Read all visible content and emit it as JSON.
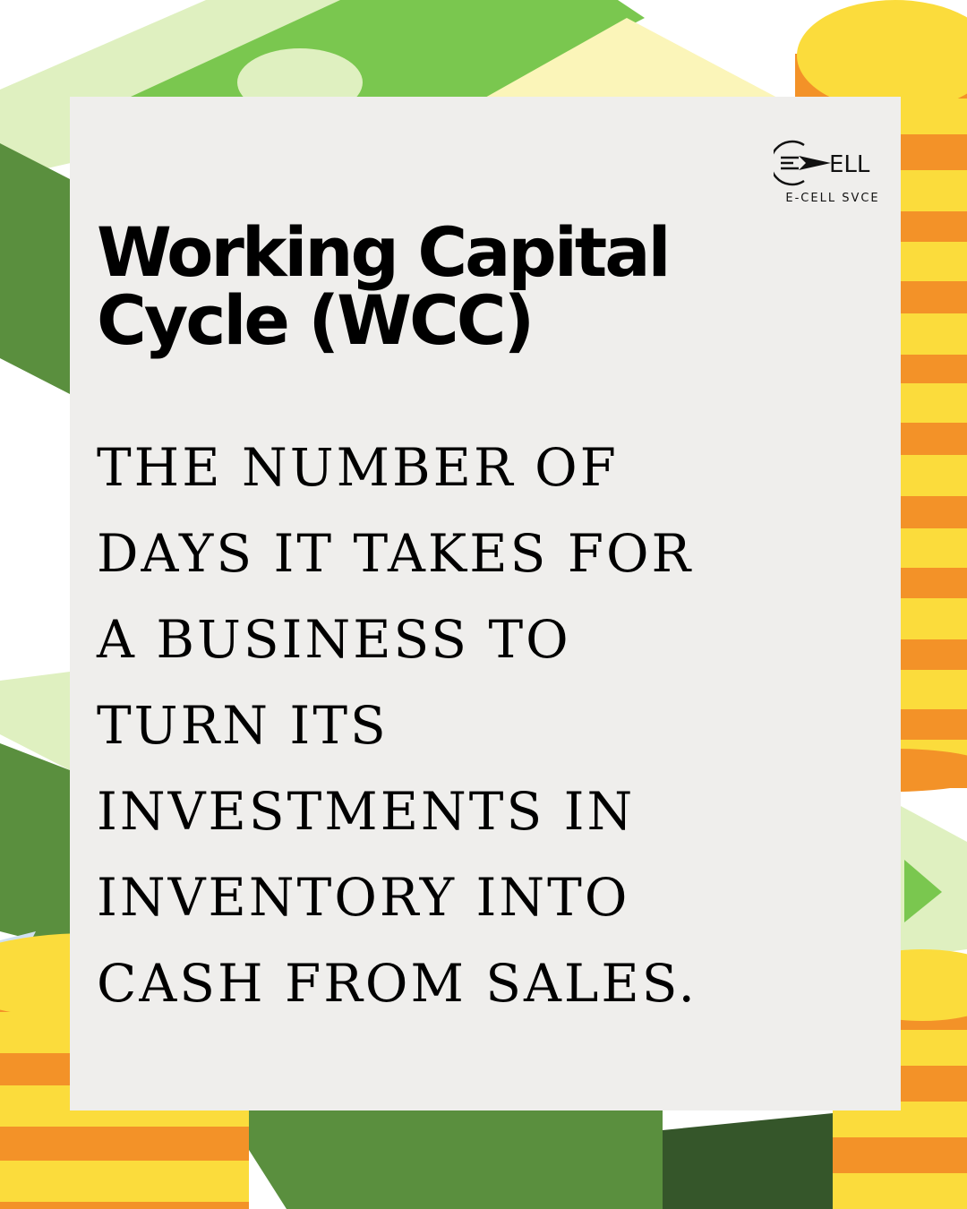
{
  "brand": {
    "logo_text": "ELL",
    "caption": "E-CELL SVCE"
  },
  "title": {
    "lines": [
      "Working Capital",
      "Cycle (WCC)"
    ]
  },
  "description": {
    "lines": [
      "THE NUMBER OF",
      "DAYS IT TAKES FOR",
      "A BUSINESS TO",
      "TURN ITS",
      "INVESTMENTS IN",
      "INVENTORY INTO",
      "CASH FROM SALES."
    ]
  },
  "colors": {
    "card_background": "#efeeec",
    "text": "#000000",
    "money_green": "#7ac74f",
    "money_light_green": "#dff0c0",
    "money_dark_green": "#5a8f3e",
    "money_pale_yellow": "#fbf5b9",
    "coin_yellow": "#fbdc3c",
    "coin_orange": "#f39228"
  }
}
